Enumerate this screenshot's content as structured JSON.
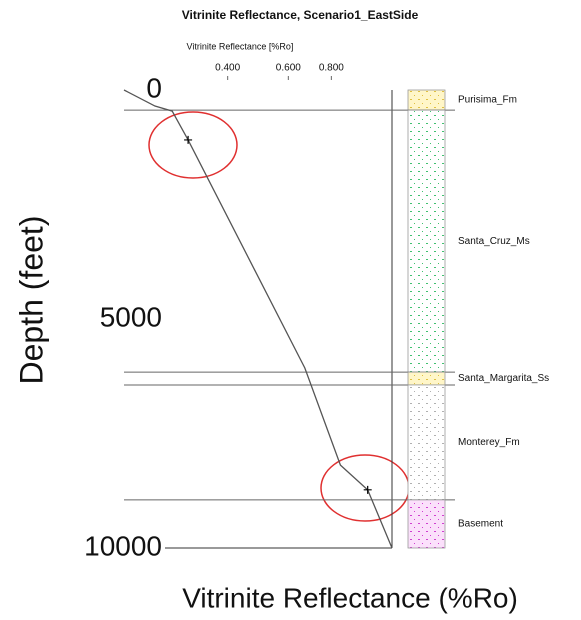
{
  "chart_data": {
    "type": "line",
    "title": "Vitrinite Reflectance, Scenario1_EastSide",
    "x_label_top": "Vitrinite Reflectance [%Ro]",
    "x_label": "Vitrinite Reflectance  (%Ro)",
    "y_label": "Depth (feet)",
    "xscale": "log",
    "xlim": [
      0.2,
      1.2
    ],
    "xticks": [
      {
        "value": 0.4,
        "label": "0.400"
      },
      {
        "value": 0.6,
        "label": "0.600"
      },
      {
        "value": 0.8,
        "label": "0.800"
      }
    ],
    "ylim": [
      0,
      10000
    ],
    "yticks": [
      0,
      5000,
      10000
    ],
    "grid": false,
    "series": [
      {
        "color": "#555555",
        "values": [
          0.2,
          0.246,
          0.276,
          0.307,
          0.67,
          0.85,
          1.02,
          1.2
        ],
        "depths": [
          0,
          350,
          460,
          1090,
          6070,
          8190,
          8730,
          10000
        ]
      },
      {
        "color": "#000000",
        "marker": "+",
        "values": [
          0.307,
          1.02
        ],
        "depths": [
          1090,
          8730
        ]
      }
    ],
    "layers": [
      {
        "name": "Purisima_Fm",
        "top": 0,
        "base": 440,
        "color": "#fff6c8",
        "dot": "#e0c040"
      },
      {
        "name": "Santa_Cruz_Ms",
        "top": 440,
        "base": 6160,
        "color": "#ffffff",
        "dot": "#40c070"
      },
      {
        "name": "Santa_Margarita_Ss",
        "top": 6160,
        "base": 6440,
        "color": "#fff6c8",
        "dot": "#e0c040"
      },
      {
        "name": "Monterey_Fm",
        "top": 6440,
        "base": 8950,
        "color": "#ffffff",
        "dot": "#b0b0b0"
      },
      {
        "name": "Basement",
        "top": 8950,
        "base": 10000,
        "color": "#fbe0fb",
        "dot": "#d040d0"
      }
    ]
  }
}
